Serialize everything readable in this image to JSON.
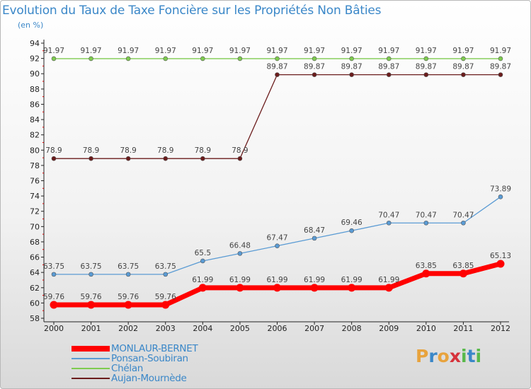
{
  "title": "Evolution du Taux de Taxe Foncière sur les Propriétés Non Bâties",
  "unit_label": "(en %)",
  "logo": {
    "text": "Proxiti",
    "letters": [
      {
        "ch": "P",
        "color": "#e8a33d"
      },
      {
        "ch": "r",
        "color": "#3a87c8"
      },
      {
        "ch": "o",
        "color": "#e8a33d"
      },
      {
        "ch": "x",
        "color": "#d6323b"
      },
      {
        "ch": "i",
        "color": "#58b94a"
      },
      {
        "ch": "t",
        "color": "#3a87c8"
      },
      {
        "ch": "i",
        "color": "#58b94a"
      }
    ]
  },
  "chart_data": {
    "type": "line",
    "title": "Evolution du Taux de Taxe Foncière sur les Propriétés Non Bâties",
    "ylabel": "(en %)",
    "xlabel": "",
    "ylim": [
      58,
      94
    ],
    "yticks": [
      58,
      60,
      62,
      64,
      66,
      68,
      70,
      72,
      74,
      76,
      78,
      80,
      82,
      84,
      86,
      88,
      90,
      92,
      94
    ],
    "grid": false,
    "legend": "bottom-left",
    "x": [
      "2000",
      "2001",
      "2002",
      "2003",
      "2004",
      "2005",
      "2006",
      "2007",
      "2008",
      "2009",
      "2010",
      "2011",
      "2012"
    ],
    "series": [
      {
        "name": "Chélan",
        "color": "#7ecb4f",
        "values": [
          91.97,
          91.97,
          91.97,
          91.97,
          91.97,
          91.97,
          91.97,
          91.97,
          91.97,
          91.97,
          91.97,
          91.97,
          91.97
        ],
        "labels": [
          "91.97",
          "91.97",
          "91.97",
          "91.97",
          "91.97",
          "91.97",
          "91.97",
          "91.97",
          "91.97",
          "91.97",
          "91.97",
          "91.97",
          "91.97"
        ]
      },
      {
        "name": "Aujan-Mournède",
        "color": "#6b1c1c",
        "values": [
          78.9,
          78.9,
          78.9,
          78.9,
          78.9,
          78.9,
          89.87,
          89.87,
          89.87,
          89.87,
          89.87,
          89.87,
          89.87
        ],
        "labels": [
          "78.9",
          "78.9",
          "78.9",
          "78.9",
          "78.9",
          "78.9",
          "89.87",
          "89.87",
          "89.87",
          "89.87",
          "89.87",
          "89.87",
          "89.87"
        ]
      },
      {
        "name": "Ponsan-Soubiran",
        "color": "#5a9bd4",
        "values": [
          63.75,
          63.75,
          63.75,
          63.75,
          65.5,
          66.48,
          67.47,
          68.47,
          69.46,
          70.47,
          70.47,
          70.47,
          73.89
        ],
        "labels": [
          "63.75",
          "63.75",
          "63.75",
          "63.75",
          "65.5",
          "66.48",
          "67.47",
          "68.47",
          "69.46",
          "70.47",
          "70.47",
          "70.47",
          "73.89"
        ]
      },
      {
        "name": "MONLAUR-BERNET",
        "color": "#ff0000",
        "values": [
          59.76,
          59.76,
          59.76,
          59.76,
          61.99,
          61.99,
          61.99,
          61.99,
          61.99,
          61.99,
          63.85,
          63.85,
          65.13
        ],
        "labels": [
          "59.76",
          "59.76",
          "59.76",
          "59.76",
          "61.99",
          "61.99",
          "61.99",
          "61.99",
          "61.99",
          "61.99",
          "63.85",
          "63.85",
          "65.13"
        ]
      }
    ]
  },
  "legend_items": [
    {
      "name": "MONLAUR-BERNET",
      "color": "#ff0000",
      "text_color": "#3a87c8"
    },
    {
      "name": "Ponsan-Soubiran",
      "color": "#5a9bd4",
      "text_color": "#3a87c8"
    },
    {
      "name": "Chélan",
      "color": "#7ecb4f",
      "text_color": "#3a87c8"
    },
    {
      "name": "Aujan-Mournède",
      "color": "#6b1c1c",
      "text_color": "#3a87c8"
    }
  ]
}
